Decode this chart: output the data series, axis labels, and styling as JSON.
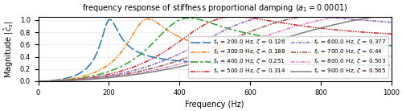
{
  "title": "frequency response of stiffness proportional damping ($a_1 = 0.0001$)",
  "xlabel": "Frequency (Hz)",
  "ylabel": "Magnitude $|\\hat{c}_s|$",
  "xlim": [
    0,
    1000
  ],
  "ylim": [
    0.0,
    1.05
  ],
  "fn_values": [
    200.0,
    300.0,
    400.0,
    500.0,
    600.0,
    700.0,
    800.0,
    900.0
  ],
  "zeta_values": [
    0.126,
    0.188,
    0.251,
    0.314,
    0.377,
    0.44,
    0.503,
    0.565
  ],
  "a1": 0.0001,
  "colors": [
    "#1f77b4",
    "#ff7f0e",
    "#2ca02c",
    "#d62728",
    "#9467bd",
    "#8c564b",
    "#e377c2",
    "#7f7f7f"
  ],
  "legend_loc": "lower right",
  "figsize": [
    5.0,
    1.38
  ],
  "dpi": 100
}
